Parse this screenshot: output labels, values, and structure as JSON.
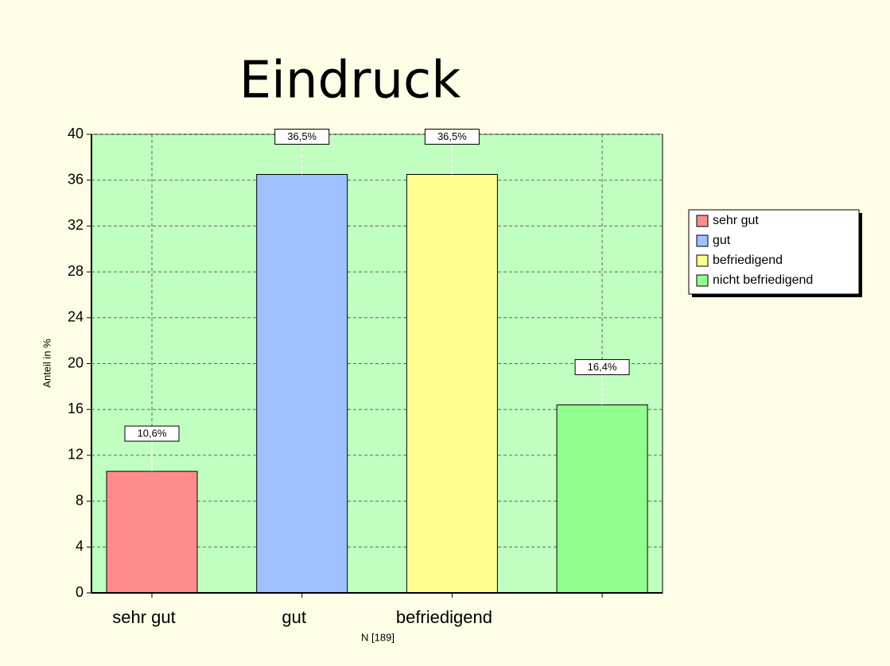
{
  "chart_data": {
    "type": "bar",
    "title": "Eindruck",
    "categories": [
      "sehr gut",
      "gut",
      "befriedigend",
      null
    ],
    "values": [
      10.6,
      36.5,
      36.5,
      16.4
    ],
    "value_labels": [
      "10,6%",
      "36,5%",
      "36,5%",
      "16,4%"
    ],
    "colors": [
      "#ff8c8c",
      "#a0c0ff",
      "#ffff90",
      "#90ff90"
    ],
    "legend": [
      "sehr gut",
      "gut",
      "befriedigend",
      "nicht befriedigend"
    ],
    "y_label": "Anteil in %",
    "x_label": "N [189]",
    "ylim": [
      0,
      40
    ],
    "yticks": [
      0,
      4,
      8,
      12,
      16,
      20,
      24,
      28,
      32,
      36,
      40
    ],
    "grid": true
  }
}
